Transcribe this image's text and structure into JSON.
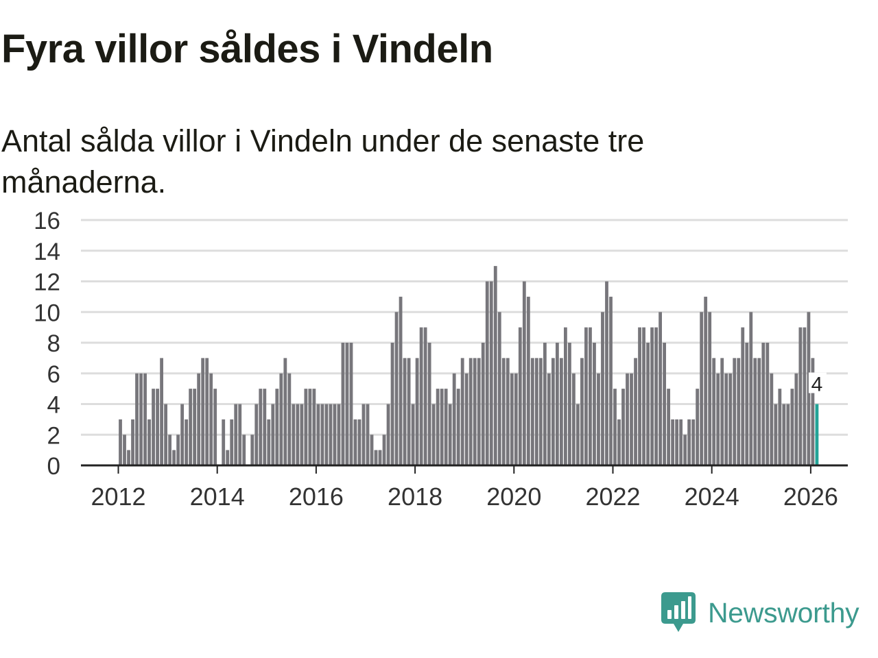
{
  "title": "Fyra villor såldes i Vindeln",
  "subtitle": "Antal sålda villor i Vindeln under de senaste tre månaderna.",
  "brand": {
    "name": "Newsworthy",
    "icon": "newsworthy-logo-icon",
    "color": "#3c9a8e"
  },
  "colors": {
    "bar": "#77767b",
    "highlight": "#22a397",
    "grid": "#dddddd",
    "axis": "#222222",
    "text": "#333333"
  },
  "chart_data": {
    "type": "bar",
    "ylim": [
      0,
      16
    ],
    "yticks": [
      0,
      2,
      4,
      6,
      8,
      10,
      12,
      14,
      16
    ],
    "xticks": [
      "2012",
      "2014",
      "2016",
      "2018",
      "2020",
      "2022",
      "2024",
      "2026"
    ],
    "start": "2012-01",
    "end": "2026-01",
    "values": [
      3,
      2,
      1,
      3,
      6,
      6,
      6,
      3,
      5,
      5,
      7,
      4,
      2,
      1,
      2,
      4,
      3,
      5,
      5,
      6,
      7,
      7,
      6,
      5,
      0,
      3,
      1,
      3,
      4,
      4,
      2,
      0,
      2,
      4,
      5,
      5,
      3,
      4,
      5,
      6,
      7,
      6,
      4,
      4,
      4,
      5,
      5,
      5,
      4,
      4,
      4,
      4,
      4,
      4,
      8,
      8,
      8,
      3,
      3,
      4,
      4,
      2,
      1,
      1,
      2,
      4,
      8,
      10,
      11,
      7,
      7,
      4,
      7,
      9,
      9,
      8,
      4,
      5,
      5,
      5,
      4,
      6,
      5,
      7,
      6,
      7,
      7,
      7,
      8,
      12,
      12,
      13,
      10,
      7,
      7,
      6,
      6,
      9,
      12,
      11,
      7,
      7,
      7,
      8,
      6,
      7,
      8,
      7,
      9,
      8,
      6,
      4,
      7,
      9,
      9,
      8,
      6,
      10,
      12,
      11,
      5,
      3,
      5,
      6,
      6,
      7,
      9,
      9,
      8,
      9,
      9,
      10,
      8,
      5,
      3,
      3,
      3,
      2,
      3,
      3,
      5,
      10,
      11,
      10,
      7,
      6,
      7,
      6,
      6,
      7,
      7,
      9,
      8,
      10,
      7,
      7,
      8,
      8,
      6,
      4,
      5,
      4,
      4,
      5,
      6,
      9,
      9,
      10,
      7,
      4
    ],
    "highlight": {
      "label": "4",
      "value": 4,
      "date": "2026-01"
    }
  }
}
